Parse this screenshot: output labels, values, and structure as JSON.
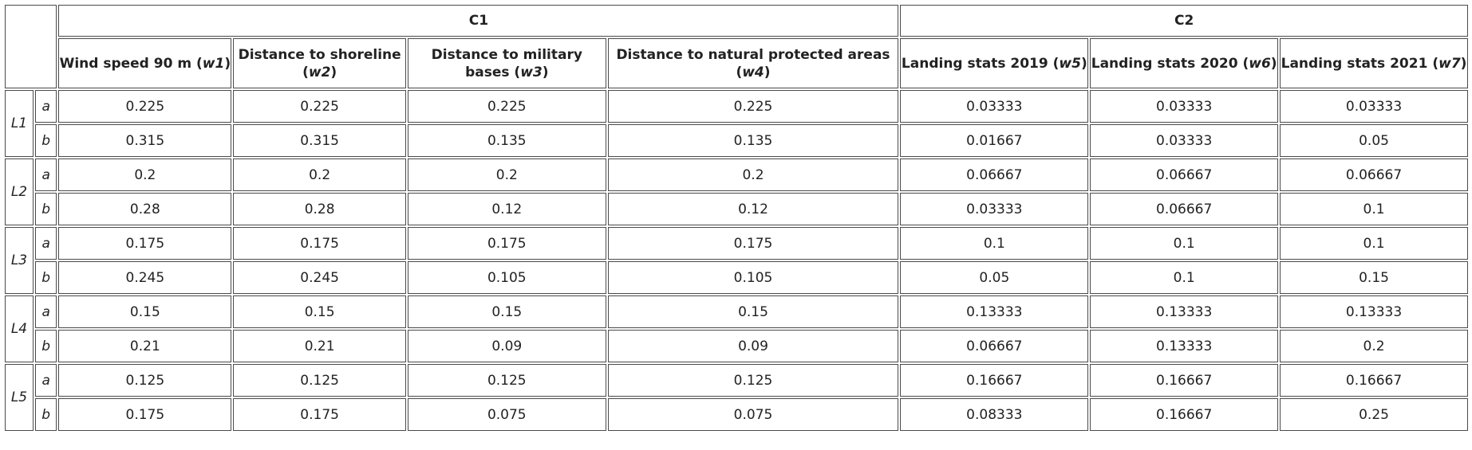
{
  "groups": [
    {
      "label": "C1"
    },
    {
      "label": "C2"
    }
  ],
  "columns": [
    {
      "label": "Wind speed 90 m",
      "weight": "w1"
    },
    {
      "label": "Distance to shoreline",
      "weight": "w2"
    },
    {
      "label": "Distance to military bases",
      "weight": "w3"
    },
    {
      "label": "Distance to natural protected areas",
      "weight": "w4"
    },
    {
      "label": "Landing stats 2019",
      "weight": "w5"
    },
    {
      "label": "Landing stats 2020",
      "weight": "w6"
    },
    {
      "label": "Landing stats 2021",
      "weight": "w7"
    }
  ],
  "locations": [
    {
      "label": "L1",
      "rows": [
        {
          "sub": "a",
          "values": [
            "0.225",
            "0.225",
            "0.225",
            "0.225",
            "0.03333",
            "0.03333",
            "0.03333"
          ]
        },
        {
          "sub": "b",
          "values": [
            "0.315",
            "0.315",
            "0.135",
            "0.135",
            "0.01667",
            "0.03333",
            "0.05"
          ]
        }
      ]
    },
    {
      "label": "L2",
      "rows": [
        {
          "sub": "a",
          "values": [
            "0.2",
            "0.2",
            "0.2",
            "0.2",
            "0.06667",
            "0.06667",
            "0.06667"
          ]
        },
        {
          "sub": "b",
          "values": [
            "0.28",
            "0.28",
            "0.12",
            "0.12",
            "0.03333",
            "0.06667",
            "0.1"
          ]
        }
      ]
    },
    {
      "label": "L3",
      "rows": [
        {
          "sub": "a",
          "values": [
            "0.175",
            "0.175",
            "0.175",
            "0.175",
            "0.1",
            "0.1",
            "0.1"
          ]
        },
        {
          "sub": "b",
          "values": [
            "0.245",
            "0.245",
            "0.105",
            "0.105",
            "0.05",
            "0.1",
            "0.15"
          ]
        }
      ]
    },
    {
      "label": "L4",
      "rows": [
        {
          "sub": "a",
          "values": [
            "0.15",
            "0.15",
            "0.15",
            "0.15",
            "0.13333",
            "0.13333",
            "0.13333"
          ]
        },
        {
          "sub": "b",
          "values": [
            "0.21",
            "0.21",
            "0.09",
            "0.09",
            "0.06667",
            "0.13333",
            "0.2"
          ]
        }
      ]
    },
    {
      "label": "L5",
      "rows": [
        {
          "sub": "a",
          "values": [
            "0.125",
            "0.125",
            "0.125",
            "0.125",
            "0.16667",
            "0.16667",
            "0.16667"
          ]
        },
        {
          "sub": "b",
          "values": [
            "0.175",
            "0.175",
            "0.075",
            "0.075",
            "0.08333",
            "0.16667",
            "0.25"
          ]
        }
      ]
    }
  ]
}
